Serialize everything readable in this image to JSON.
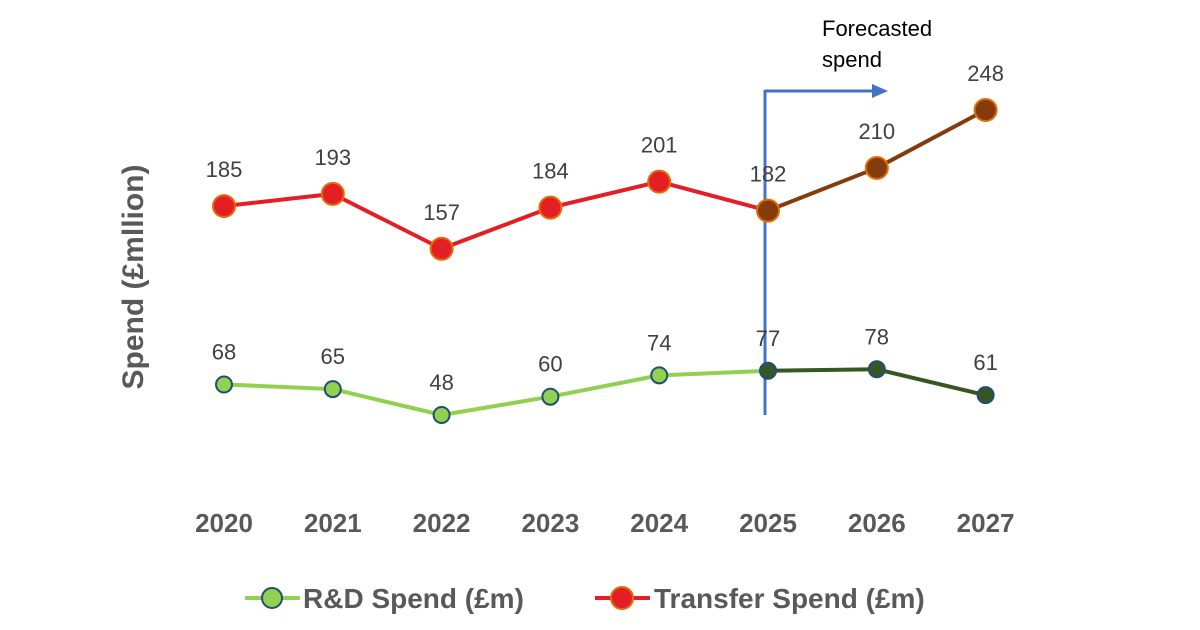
{
  "chart_data": {
    "type": "line",
    "title": "",
    "xlabel": "",
    "ylabel": "Spend (£mllion)",
    "categories": [
      "2020",
      "2021",
      "2022",
      "2023",
      "2024",
      "2025",
      "2026",
      "2027"
    ],
    "ylim": [
      30,
      260
    ],
    "grid": false,
    "legend_position": "bottom",
    "forecast_start": "2025",
    "forecast_label_lines": [
      "Forecasted",
      "spend"
    ],
    "series": [
      {
        "name": "R&D Spend (£m)",
        "values": [
          68,
          65,
          48,
          60,
          74,
          77,
          78,
          61
        ],
        "color": "#92D050",
        "forecast_color": "#375623",
        "marker_edge": "#1F4E79"
      },
      {
        "name": "Transfer Spend (£m)",
        "values": [
          185,
          193,
          157,
          184,
          201,
          182,
          210,
          248
        ],
        "color": "#E31E24",
        "forecast_color": "#843C0C",
        "marker_edge": "#E36C0A"
      }
    ],
    "forecast_line_color": "#4472C4"
  }
}
